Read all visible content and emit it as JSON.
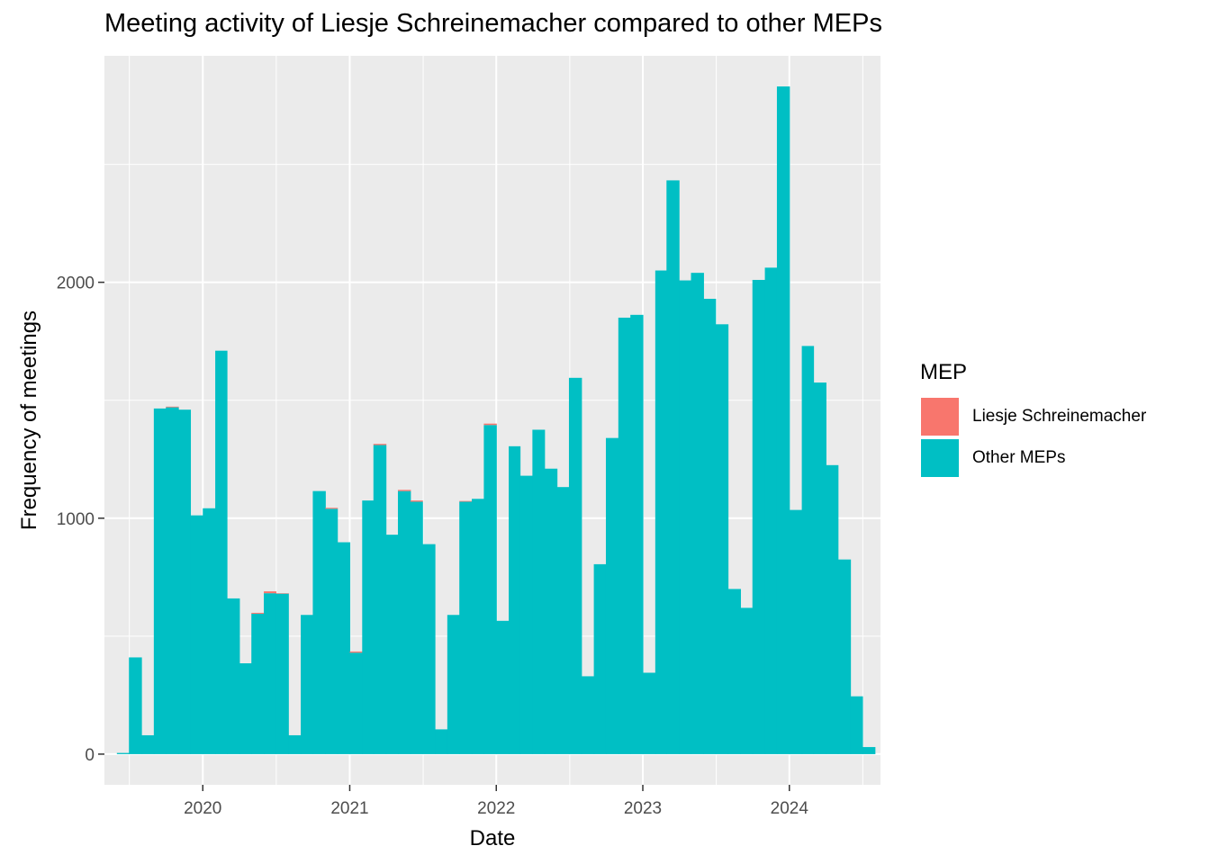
{
  "chart_data": {
    "type": "bar",
    "title": "Meeting activity of Liesje Schreinemacher compared to other MEPs",
    "xlabel": "Date",
    "ylabel": "Frequency of meetings",
    "x_range": [
      "2019-05-01",
      "2024-08-15"
    ],
    "ylim": [
      -130,
      2960
    ],
    "x_ticks": [
      "2020-01-01",
      "2021-01-01",
      "2022-01-01",
      "2023-01-01",
      "2024-01-01"
    ],
    "x_tick_labels": [
      "2020",
      "2021",
      "2022",
      "2023",
      "2024"
    ],
    "y_ticks": [
      0,
      1000,
      2000
    ],
    "y_tick_labels": [
      "0",
      "1000",
      "2000"
    ],
    "grid": true,
    "legend": {
      "title": "MEP",
      "position": "right"
    },
    "colors": {
      "Liesje Schreinemacher": "#F8766D",
      "Other MEPs": "#00BFC4",
      "panel": "#EBEBEB",
      "grid": "#FFFFFF"
    },
    "stacked": true,
    "categories": [
      "2019-06",
      "2019-07",
      "2019-08",
      "2019-09",
      "2019-10",
      "2019-11",
      "2019-12",
      "2020-01",
      "2020-02",
      "2020-03",
      "2020-04",
      "2020-05",
      "2020-06",
      "2020-07",
      "2020-08",
      "2020-09",
      "2020-10",
      "2020-11",
      "2020-12",
      "2021-01",
      "2021-02",
      "2021-03",
      "2021-04",
      "2021-05",
      "2021-06",
      "2021-07",
      "2021-08",
      "2021-09",
      "2021-10",
      "2021-11",
      "2021-12",
      "2022-01",
      "2022-02",
      "2022-03",
      "2022-04",
      "2022-05",
      "2022-06",
      "2022-07",
      "2022-08",
      "2022-09",
      "2022-10",
      "2022-11",
      "2022-12",
      "2023-01",
      "2023-02",
      "2023-03",
      "2023-04",
      "2023-05",
      "2023-06",
      "2023-07",
      "2023-08",
      "2023-09",
      "2023-10",
      "2023-11",
      "2023-12",
      "2024-01",
      "2024-02",
      "2024-03",
      "2024-04",
      "2024-05",
      "2024-06",
      "2024-07"
    ],
    "series": [
      {
        "name": "Liesje Schreinemacher",
        "values": [
          0,
          0,
          0,
          0,
          3,
          0,
          0,
          0,
          0,
          0,
          0,
          4,
          8,
          2,
          0,
          0,
          0,
          4,
          0,
          5,
          0,
          5,
          0,
          5,
          5,
          0,
          0,
          0,
          3,
          0,
          6,
          0,
          0,
          0,
          0,
          0,
          0,
          0,
          0,
          0,
          0,
          0,
          0,
          0,
          0,
          0,
          0,
          0,
          0,
          0,
          0,
          0,
          0,
          0,
          0,
          0,
          0,
          0,
          0,
          0,
          0,
          0
        ]
      },
      {
        "name": "Other MEPs",
        "values": [
          5,
          410,
          80,
          1465,
          1470,
          1460,
          1012,
          1042,
          1710,
          660,
          385,
          595,
          682,
          680,
          80,
          590,
          1115,
          1040,
          898,
          430,
          1075,
          1310,
          930,
          1115,
          1070,
          890,
          105,
          590,
          1070,
          1082,
          1395,
          565,
          1305,
          1180,
          1375,
          1210,
          1132,
          1595,
          330,
          805,
          1340,
          1850,
          1862,
          345,
          2050,
          2432,
          2008,
          2040,
          1930,
          1822,
          700,
          620,
          2010,
          2062,
          2830,
          1035,
          1730,
          1575,
          1225,
          825,
          245,
          30
        ]
      }
    ]
  }
}
